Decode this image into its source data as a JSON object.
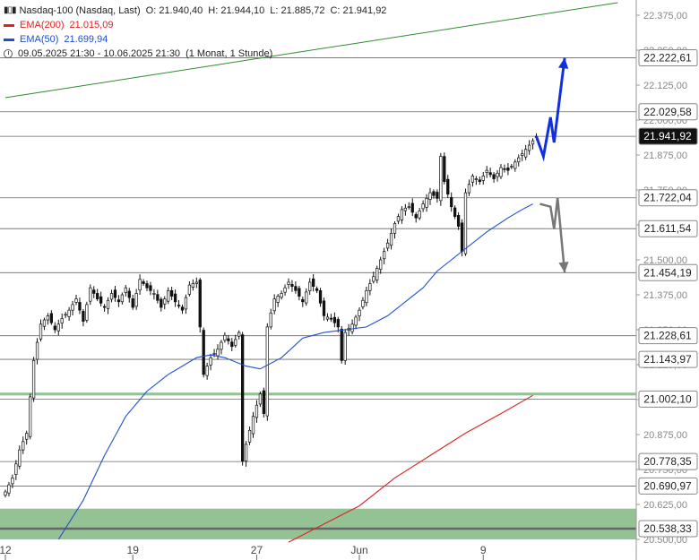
{
  "header": {
    "instrument": "Nasdaq-100 (Nasdaq, Last)",
    "open": "O: 21.940,40",
    "high": "H: 21.944,10",
    "low": "L: 21.885,72",
    "close": "C: 21.941,92",
    "ema200_label": "EMA(200)",
    "ema200_value": "21.015,09",
    "ema50_label": "EMA(50)",
    "ema50_value": "21.699,94",
    "range": "09.05.2025 21:30 - 10.06.2025 21:30",
    "timeframe": "(1 Monat, 1 Stunde)"
  },
  "colors": {
    "ema200": "#dd2222",
    "ema50": "#1f4fd0",
    "long_trend": "#2e8b2e",
    "support_zone": "#8fbf8f",
    "projection_up": "#1030e0",
    "projection_down": "#777777"
  },
  "chart_data": {
    "type": "candlestick",
    "y_ticks": [
      "22.375,00",
      "22.250,00",
      "22.125,00",
      "22.000,00",
      "21.875,00",
      "21.750,00",
      "21.625,00",
      "21.500,00",
      "21.375,00",
      "21.250,00",
      "21.125,00",
      "21.000,00",
      "20.875,00",
      "20.750,00",
      "20.625,00",
      "20.500,00"
    ],
    "y_tick_values": [
      22375,
      22250,
      22125,
      22000,
      21875,
      21750,
      21625,
      21500,
      21375,
      21250,
      21125,
      21000,
      20875,
      20750,
      20625,
      20500
    ],
    "x_ticks": [
      {
        "label": "12",
        "bar": 0
      },
      {
        "label": "19",
        "bar": 36
      },
      {
        "label": "27",
        "bar": 71
      },
      {
        "label": "Jun",
        "bar": 100
      },
      {
        "label": "9",
        "bar": 135
      }
    ],
    "ylim": [
      20490,
      22420
    ],
    "price_levels": [
      {
        "label": "22.222,61",
        "value": 22222.61
      },
      {
        "label": "22.029,58",
        "value": 22029.58
      },
      {
        "label": "21.941,92",
        "value": 21941.92,
        "current": true
      },
      {
        "label": "21.722,04",
        "value": 21722.04
      },
      {
        "label": "21.611,54",
        "value": 21611.54
      },
      {
        "label": "21.454,19",
        "value": 21454.19
      },
      {
        "label": "21.228,61",
        "value": 21228.61
      },
      {
        "label": "21.143,97",
        "value": 21143.97
      },
      {
        "label": "21.002,10",
        "value": 21002.1
      },
      {
        "label": "20.778,35",
        "value": 20778.35
      },
      {
        "label": "20.690,97",
        "value": 20690.97
      },
      {
        "label": "20.538,33",
        "value": 20538.33
      }
    ],
    "zones": [
      {
        "from": 20500,
        "to": 20610
      },
      {
        "from": 21015,
        "to": 21025
      }
    ],
    "ohlc_anchors": [
      [
        0,
        20670
      ],
      [
        2,
        20720
      ],
      [
        4,
        20820
      ],
      [
        6,
        20880
      ],
      [
        8,
        21140
      ],
      [
        10,
        21270
      ],
      [
        12,
        21300
      ],
      [
        14,
        21250
      ],
      [
        16,
        21290
      ],
      [
        18,
        21320
      ],
      [
        20,
        21360
      ],
      [
        22,
        21280
      ],
      [
        24,
        21400
      ],
      [
        26,
        21360
      ],
      [
        28,
        21330
      ],
      [
        30,
        21380
      ],
      [
        32,
        21350
      ],
      [
        34,
        21400
      ],
      [
        36,
        21330
      ],
      [
        38,
        21430
      ],
      [
        40,
        21400
      ],
      [
        42,
        21380
      ],
      [
        44,
        21330
      ],
      [
        46,
        21390
      ],
      [
        48,
        21350
      ],
      [
        50,
        21320
      ],
      [
        52,
        21410
      ],
      [
        54,
        21420
      ],
      [
        55,
        21260
      ],
      [
        56,
        21090
      ],
      [
        58,
        21150
      ],
      [
        60,
        21180
      ],
      [
        62,
        21230
      ],
      [
        64,
        21190
      ],
      [
        66,
        21240
      ],
      [
        67,
        20780
      ],
      [
        68,
        20840
      ],
      [
        70,
        20940
      ],
      [
        72,
        21020
      ],
      [
        73,
        20950
      ],
      [
        74,
        21260
      ],
      [
        76,
        21360
      ],
      [
        78,
        21380
      ],
      [
        80,
        21420
      ],
      [
        82,
        21390
      ],
      [
        84,
        21350
      ],
      [
        86,
        21420
      ],
      [
        88,
        21390
      ],
      [
        90,
        21300
      ],
      [
        92,
        21290
      ],
      [
        94,
        21260
      ],
      [
        95,
        21140
      ],
      [
        96,
        21240
      ],
      [
        98,
        21270
      ],
      [
        100,
        21320
      ],
      [
        102,
        21390
      ],
      [
        104,
        21440
      ],
      [
        106,
        21500
      ],
      [
        108,
        21560
      ],
      [
        110,
        21630
      ],
      [
        112,
        21680
      ],
      [
        114,
        21690
      ],
      [
        116,
        21650
      ],
      [
        118,
        21700
      ],
      [
        120,
        21740
      ],
      [
        122,
        21720
      ],
      [
        123,
        21870
      ],
      [
        124,
        21780
      ],
      [
        126,
        21690
      ],
      [
        128,
        21620
      ],
      [
        129,
        21530
      ],
      [
        130,
        21740
      ],
      [
        132,
        21800
      ],
      [
        134,
        21780
      ],
      [
        136,
        21820
      ],
      [
        138,
        21790
      ],
      [
        140,
        21830
      ],
      [
        142,
        21820
      ],
      [
        144,
        21850
      ],
      [
        146,
        21880
      ],
      [
        148,
        21910
      ],
      [
        150,
        21941.92
      ]
    ],
    "ema50_anchors": [
      [
        15,
        20500
      ],
      [
        22,
        20640
      ],
      [
        28,
        20800
      ],
      [
        34,
        20940
      ],
      [
        40,
        21030
      ],
      [
        46,
        21090
      ],
      [
        50,
        21120
      ],
      [
        54,
        21150
      ],
      [
        58,
        21160
      ],
      [
        62,
        21150
      ],
      [
        68,
        21120
      ],
      [
        72,
        21110
      ],
      [
        78,
        21150
      ],
      [
        84,
        21220
      ],
      [
        90,
        21240
      ],
      [
        96,
        21250
      ],
      [
        102,
        21260
      ],
      [
        108,
        21300
      ],
      [
        114,
        21360
      ],
      [
        118,
        21400
      ],
      [
        122,
        21460
      ],
      [
        126,
        21500
      ],
      [
        130,
        21540
      ],
      [
        136,
        21600
      ],
      [
        142,
        21650
      ],
      [
        146,
        21680
      ],
      [
        149,
        21699.94
      ]
    ],
    "ema200_anchors": [
      [
        80,
        20490
      ],
      [
        100,
        20620
      ],
      [
        110,
        20720
      ],
      [
        120,
        20800
      ],
      [
        130,
        20880
      ],
      [
        140,
        20950
      ],
      [
        149,
        21015.09
      ]
    ],
    "long_trend": {
      "from": [
        0,
        22080
      ],
      "to": [
        173,
        22420
      ]
    },
    "projection_up": [
      [
        150,
        21941.92
      ],
      [
        152,
        21870
      ],
      [
        154,
        22010
      ],
      [
        155,
        21920
      ],
      [
        158,
        22222.61
      ]
    ],
    "projection_down": [
      [
        151,
        21700
      ],
      [
        154,
        21690
      ],
      [
        155,
        21610
      ],
      [
        156,
        21722.04
      ],
      [
        158,
        21454.19
      ]
    ]
  }
}
